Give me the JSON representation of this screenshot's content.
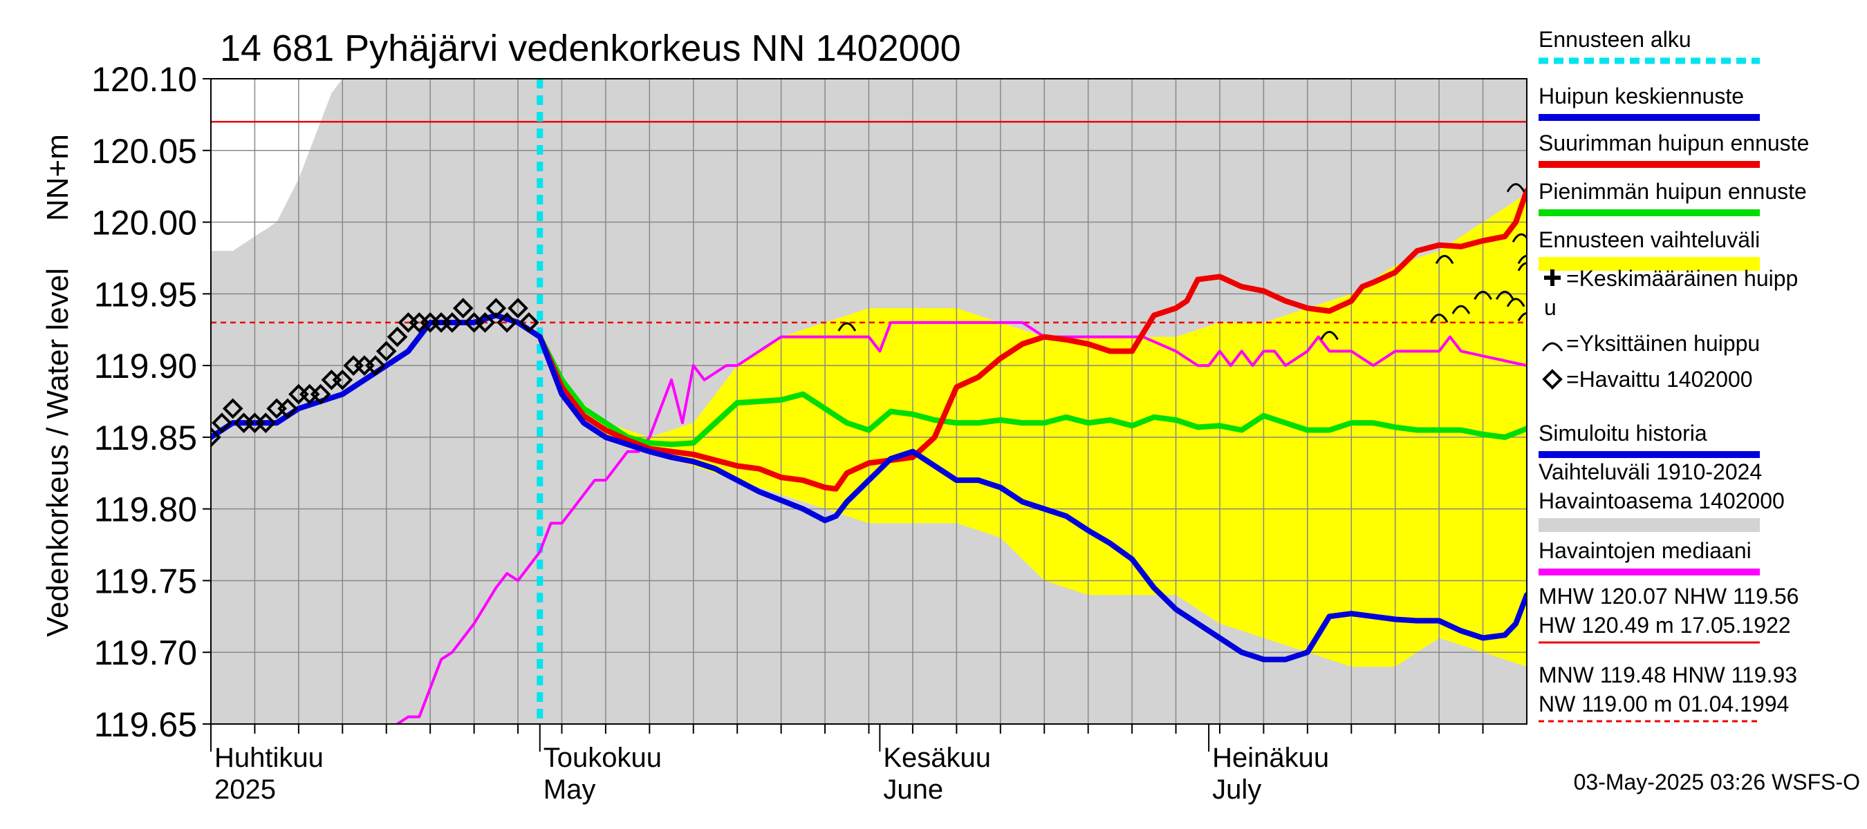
{
  "chart_data": {
    "type": "line",
    "title": "14 681 Pyhäjärvi vedenkorkeus NN 1402000",
    "ylabel_top": "NN+m",
    "ylabel": "Vedenkorkeus / Water level",
    "ylim": [
      119.65,
      120.1
    ],
    "yticks": [
      "120.10",
      "120.05",
      "120.00",
      "119.95",
      "119.90",
      "119.85",
      "119.80",
      "119.75",
      "119.70",
      "119.65"
    ],
    "ytick_values": [
      120.1,
      120.05,
      120.0,
      119.95,
      119.9,
      119.85,
      119.8,
      119.75,
      119.7,
      119.65
    ],
    "xlim_days": [
      0,
      120
    ],
    "month_labels": [
      {
        "fi": "Huhtikuu",
        "en": "2025",
        "day": 0
      },
      {
        "fi": "Toukokuu",
        "en": "May",
        "day": 30
      },
      {
        "fi": "Kesäkuu",
        "en": "June",
        "day": 61
      },
      {
        "fi": "Heinäkuu",
        "en": "July",
        "day": 91
      }
    ],
    "forecast_start_day": 30,
    "reference_lines": {
      "MHW": 120.07,
      "HNW": 119.93
    },
    "gray_band": {
      "x": [
        0,
        2,
        4,
        6,
        8,
        10,
        11,
        12,
        20,
        30,
        40,
        50,
        60,
        66,
        70,
        80,
        90,
        100,
        110,
        120
      ],
      "upper": [
        119.98,
        119.98,
        119.99,
        120.0,
        120.03,
        120.07,
        120.09,
        120.1,
        120.1,
        120.1,
        120.1,
        120.1,
        120.1,
        120.1,
        120.1,
        120.1,
        120.1,
        120.1,
        120.1,
        120.1
      ],
      "lower": [
        119.65,
        119.65,
        119.65,
        119.65,
        119.65,
        119.65,
        119.65,
        119.65,
        119.65,
        119.65,
        119.65,
        119.65,
        119.65,
        119.65,
        119.65,
        119.65,
        119.65,
        119.65,
        119.65,
        119.65
      ]
    },
    "yellow_band": {
      "x": [
        30,
        33,
        36,
        40,
        44,
        48,
        52,
        56,
        60,
        64,
        68,
        72,
        76,
        80,
        84,
        88,
        92,
        96,
        100,
        104,
        108,
        112,
        116,
        120
      ],
      "upper": [
        119.92,
        119.88,
        119.86,
        119.85,
        119.86,
        119.9,
        119.92,
        119.93,
        119.94,
        119.94,
        119.94,
        119.93,
        119.92,
        119.92,
        119.92,
        119.92,
        119.93,
        119.93,
        119.94,
        119.95,
        119.97,
        119.98,
        120.0,
        120.02
      ],
      "lower": [
        119.92,
        119.88,
        119.85,
        119.84,
        119.83,
        119.82,
        119.81,
        119.8,
        119.79,
        119.79,
        119.79,
        119.78,
        119.75,
        119.74,
        119.74,
        119.74,
        119.72,
        119.71,
        119.7,
        119.69,
        119.69,
        119.71,
        119.7,
        119.69
      ]
    },
    "series": [
      {
        "name": "Havaintojen mediaani",
        "color": "#ff00ff",
        "x": [
          17,
          18,
          19,
          21,
          22,
          24,
          26,
          27,
          28,
          30,
          31,
          32,
          34,
          35,
          36,
          38,
          39,
          40,
          42,
          43,
          44,
          45,
          47,
          48,
          50,
          52,
          60,
          61,
          62,
          70,
          72,
          74,
          76,
          80,
          85,
          88,
          90,
          91,
          92,
          93,
          94,
          95,
          96,
          97,
          98,
          100,
          101,
          102,
          104,
          106,
          108,
          110,
          112,
          113,
          114,
          120
        ],
        "values": [
          119.65,
          119.655,
          119.655,
          119.695,
          119.7,
          119.72,
          119.745,
          119.755,
          119.75,
          119.77,
          119.79,
          119.79,
          119.81,
          119.82,
          119.82,
          119.84,
          119.84,
          119.85,
          119.89,
          119.86,
          119.9,
          119.89,
          119.9,
          119.9,
          119.91,
          119.92,
          119.92,
          119.91,
          119.93,
          119.93,
          119.93,
          119.93,
          119.92,
          119.92,
          119.92,
          119.91,
          119.9,
          119.9,
          119.91,
          119.9,
          119.91,
          119.9,
          119.91,
          119.91,
          119.9,
          119.91,
          119.92,
          119.91,
          119.91,
          119.9,
          119.91,
          119.91,
          119.91,
          119.92,
          119.91,
          119.9
        ]
      },
      {
        "name": "Simuloitu historia",
        "color": "#0000dd",
        "x": [
          0,
          2,
          4,
          6,
          8,
          10,
          12,
          14,
          16,
          18,
          20,
          22,
          24,
          26,
          28,
          29,
          30
        ],
        "values": [
          119.85,
          119.86,
          119.86,
          119.86,
          119.87,
          119.875,
          119.88,
          119.89,
          119.9,
          119.91,
          119.93,
          119.93,
          119.93,
          119.935,
          119.93,
          119.925,
          119.92
        ]
      },
      {
        "name": "Pienimmän huipun ennuste",
        "color": "#00dd00",
        "x": [
          30,
          32,
          34,
          36,
          38,
          40,
          42,
          44,
          46,
          48,
          50,
          52,
          54,
          56,
          58,
          60,
          62,
          64,
          66,
          68,
          70,
          72,
          74,
          76,
          78,
          80,
          82,
          84,
          86,
          88,
          90,
          92,
          94,
          96,
          98,
          100,
          102,
          104,
          106,
          108,
          110,
          112,
          114,
          116,
          118,
          120
        ],
        "values": [
          119.92,
          119.89,
          119.87,
          119.86,
          119.85,
          119.846,
          119.845,
          119.846,
          119.86,
          119.874,
          119.875,
          119.876,
          119.88,
          119.87,
          119.86,
          119.855,
          119.868,
          119.866,
          119.862,
          119.86,
          119.86,
          119.862,
          119.86,
          119.86,
          119.864,
          119.86,
          119.862,
          119.858,
          119.864,
          119.862,
          119.857,
          119.858,
          119.855,
          119.865,
          119.86,
          119.855,
          119.855,
          119.86,
          119.86,
          119.857,
          119.855,
          119.855,
          119.855,
          119.852,
          119.85,
          119.856
        ]
      },
      {
        "name": "Suurimman huipun ennuste",
        "color": "#ee0000",
        "x": [
          30,
          32,
          34,
          36,
          38,
          40,
          42,
          44,
          46,
          48,
          50,
          52,
          54,
          56,
          57,
          58,
          60,
          62,
          64,
          66,
          68,
          70,
          72,
          74,
          76,
          78,
          80,
          82,
          84,
          86,
          88,
          89,
          90,
          92,
          94,
          96,
          98,
          100,
          102,
          104,
          105,
          106,
          108,
          110,
          112,
          114,
          116,
          118,
          119,
          120
        ],
        "values": [
          119.92,
          119.885,
          119.865,
          119.855,
          119.848,
          119.842,
          119.84,
          119.838,
          119.834,
          119.83,
          119.828,
          119.822,
          119.82,
          119.815,
          119.814,
          119.825,
          119.832,
          119.834,
          119.836,
          119.85,
          119.885,
          119.892,
          119.905,
          119.915,
          119.92,
          119.918,
          119.915,
          119.91,
          119.91,
          119.935,
          119.94,
          119.945,
          119.96,
          119.962,
          119.955,
          119.952,
          119.945,
          119.94,
          119.938,
          119.945,
          119.955,
          119.958,
          119.965,
          119.98,
          119.984,
          119.983,
          119.987,
          119.99,
          120.0,
          120.022
        ]
      },
      {
        "name": "Huipun keskiennuste",
        "color": "#0000dd",
        "x": [
          30,
          32,
          34,
          36,
          38,
          40,
          42,
          44,
          46,
          48,
          50,
          52,
          54,
          56,
          57,
          58,
          60,
          62,
          64,
          66,
          68,
          70,
          72,
          74,
          76,
          78,
          80,
          82,
          84,
          86,
          88,
          90,
          92,
          94,
          96,
          98,
          100,
          102,
          104,
          106,
          108,
          110,
          112,
          114,
          116,
          118,
          119,
          120
        ],
        "values": [
          119.92,
          119.88,
          119.86,
          119.85,
          119.845,
          119.84,
          119.836,
          119.833,
          119.828,
          119.82,
          119.812,
          119.806,
          119.8,
          119.792,
          119.795,
          119.805,
          119.82,
          119.835,
          119.84,
          119.83,
          119.82,
          119.82,
          119.815,
          119.805,
          119.8,
          119.795,
          119.785,
          119.776,
          119.765,
          119.745,
          119.73,
          119.72,
          119.71,
          119.7,
          119.695,
          119.695,
          119.7,
          119.725,
          119.727,
          119.725,
          119.723,
          119.722,
          119.722,
          119.715,
          119.71,
          119.712,
          119.72,
          119.74
        ]
      }
    ],
    "observed": {
      "name": "Havaittu 1402000",
      "x": [
        0,
        1,
        2,
        3,
        4,
        5,
        6,
        7,
        8,
        9,
        10,
        11,
        12,
        13,
        14,
        15,
        16,
        17,
        18,
        19,
        20,
        21,
        22,
        23,
        24,
        25,
        26,
        27,
        28,
        29
      ],
      "values": [
        119.85,
        119.86,
        119.87,
        119.86,
        119.86,
        119.86,
        119.87,
        119.87,
        119.88,
        119.88,
        119.88,
        119.89,
        119.89,
        119.9,
        119.9,
        119.9,
        119.91,
        119.92,
        119.93,
        119.93,
        119.93,
        119.93,
        119.93,
        119.94,
        119.93,
        119.93,
        119.94,
        119.93,
        119.94,
        119.93
      ]
    },
    "peaks": {
      "name": "Yksittäinen huippu",
      "x": [
        58,
        102,
        112,
        112.5,
        114,
        116,
        118,
        119,
        119,
        119.5,
        120,
        120,
        120
      ],
      "values": [
        119.928,
        119.922,
        119.934,
        119.975,
        119.94,
        119.95,
        119.95,
        119.945,
        120.025,
        119.99,
        119.975,
        119.97,
        119.935
      ]
    },
    "legend": [
      {
        "label": "Ennusteen alku",
        "color": "#00e5ee",
        "style": "dashed"
      },
      {
        "label": "Huipun keskiennuste",
        "color": "#0000dd",
        "style": "line"
      },
      {
        "label": "Suurimman huipun ennuste",
        "color": "#ee0000",
        "style": "line"
      },
      {
        "label": "Pienimmän huipun ennuste",
        "color": "#00dd00",
        "style": "line"
      },
      {
        "label": "Ennusteen vaihteluväli",
        "color": "#ffff00",
        "style": "band"
      },
      {
        "label": "=Keskimääräinen huipp",
        "label2": "u",
        "color": "#000000",
        "style": "plus"
      },
      {
        "label": "=Yksittäinen huippu",
        "color": "#000000",
        "style": "arc"
      },
      {
        "label": "=Havaittu 1402000",
        "color": "#000000",
        "style": "diamond"
      },
      {
        "label": "Simuloitu historia",
        "color": "#0000dd",
        "style": "line"
      },
      {
        "label": "Vaihteluväli 1910-2024",
        "label2": " Havaintoasema 1402000",
        "color": "#d3d3d3",
        "style": "band"
      },
      {
        "label": "Havaintojen mediaani",
        "color": "#ff00ff",
        "style": "line"
      },
      {
        "label": "MHW 120.07 NHW 119.56",
        "label2": "HW 120.49 m 17.05.1922",
        "color": "#ee0000",
        "style": "thin"
      },
      {
        "label": "MNW 119.48 HNW 119.93",
        "label2": "NW 119.00 m 01.04.1994",
        "color": "#ee0000",
        "style": "thin-dashed"
      }
    ],
    "footer": "03-May-2025 03:26 WSFS-O"
  },
  "colors": {
    "gray": "#d3d3d3",
    "yellow": "#ffff00",
    "forecast_line": "#00e5ee",
    "grid": "#888888"
  }
}
